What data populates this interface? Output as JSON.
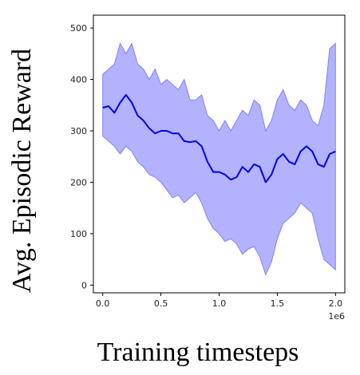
{
  "chart_data": {
    "type": "line",
    "title": "",
    "xlabel": "Training timesteps",
    "ylabel": "Avg. Episodic Reward",
    "x_offset_text": "1e6",
    "xlim": [
      -0.08,
      2.08
    ],
    "ylim": [
      -15,
      525
    ],
    "x_ticks": [
      0.0,
      0.5,
      1.0,
      1.5,
      2.0
    ],
    "x_tick_labels": [
      "0.0",
      "0.5",
      "1.0",
      "1.5",
      "2.0"
    ],
    "y_ticks": [
      0,
      100,
      200,
      300,
      400,
      500
    ],
    "y_tick_labels": [
      "0",
      "100",
      "200",
      "300",
      "400",
      "500"
    ],
    "grid": false,
    "legend": "none",
    "colors": {
      "mean": "#0000ee",
      "band_fill": "#aaaaff",
      "band_edge": "#8080ff"
    },
    "series": [
      {
        "x": [
          0.0,
          0.05,
          0.1,
          0.15,
          0.2,
          0.25,
          0.3,
          0.35,
          0.4,
          0.45,
          0.5,
          0.55,
          0.6,
          0.65,
          0.7,
          0.75,
          0.8,
          0.85,
          0.9,
          0.95,
          1.0,
          1.05,
          1.1,
          1.15,
          1.2,
          1.25,
          1.3,
          1.35,
          1.4,
          1.45,
          1.5,
          1.55,
          1.6,
          1.65,
          1.7,
          1.75,
          1.8,
          1.85,
          1.9,
          1.95,
          2.0
        ],
        "mean": [
          345,
          348,
          335,
          355,
          370,
          355,
          330,
          320,
          305,
          295,
          300,
          300,
          295,
          295,
          280,
          278,
          280,
          270,
          240,
          220,
          220,
          215,
          205,
          210,
          230,
          220,
          235,
          230,
          200,
          215,
          245,
          255,
          240,
          235,
          260,
          270,
          260,
          235,
          230,
          255,
          260
        ],
        "upper": [
          410,
          420,
          430,
          470,
          450,
          470,
          430,
          420,
          400,
          420,
          390,
          400,
          390,
          380,
          400,
          360,
          360,
          370,
          330,
          320,
          300,
          320,
          300,
          320,
          340,
          330,
          360,
          350,
          300,
          320,
          360,
          380,
          350,
          340,
          360,
          350,
          320,
          310,
          350,
          460,
          470
        ],
        "lower": [
          290,
          280,
          270,
          255,
          270,
          260,
          240,
          230,
          215,
          210,
          200,
          185,
          170,
          175,
          160,
          170,
          180,
          160,
          130,
          110,
          100,
          85,
          90,
          80,
          60,
          70,
          75,
          55,
          20,
          45,
          90,
          120,
          130,
          140,
          160,
          150,
          140,
          90,
          50,
          40,
          30
        ]
      }
    ]
  }
}
